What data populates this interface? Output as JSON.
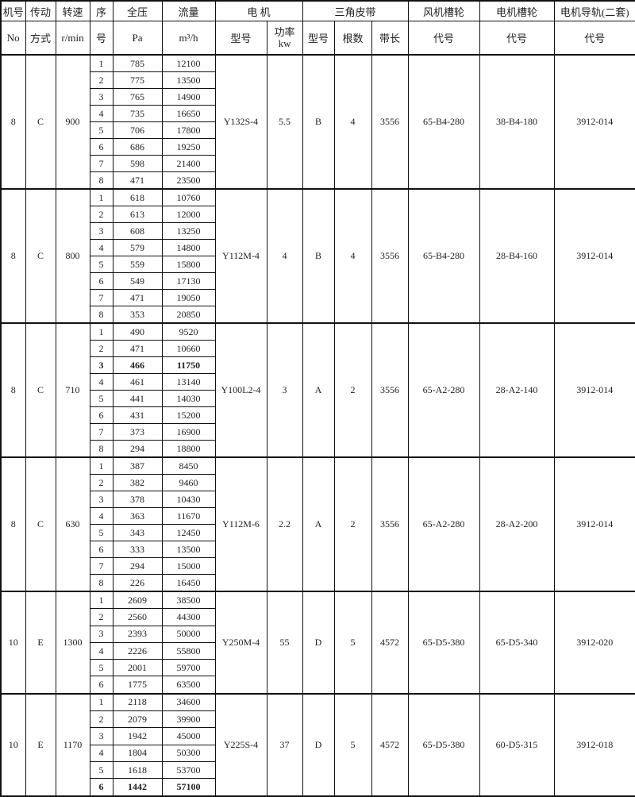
{
  "header": {
    "machine_no": "机号",
    "machine_no_en": "No",
    "drive": "传动",
    "drive2": "方式",
    "speed": "转速",
    "speed_unit": "r/min",
    "seq": "序",
    "seq2": "号",
    "pressure": "全压",
    "pressure_unit": "Pa",
    "flow": "流量",
    "flow_unit": "m³/h",
    "motor": "电 机",
    "motor_model": "型号",
    "motor_power": "功率",
    "motor_power_unit": "kw",
    "belt": "三角皮带",
    "belt_type": "型号",
    "belt_count": "根数",
    "belt_length": "带长",
    "fan_pulley": "风机槽轮",
    "fan_pulley_code": "代号",
    "motor_pulley": "电机槽轮",
    "motor_pulley_code": "代号",
    "motor_rail": "电机导轨(二套)",
    "motor_rail_code": "代号"
  },
  "groups": [
    {
      "no": "8",
      "drive": "C",
      "speed": "900",
      "motor": "Y132S-4",
      "power": "5.5",
      "belt_type": "B",
      "belt_count": "4",
      "belt_length": "3556",
      "fan_pulley": "65-B4-280",
      "motor_pulley": "38-B4-180",
      "rail": "3912-014",
      "rows": [
        [
          "1",
          "785",
          "12100"
        ],
        [
          "2",
          "775",
          "13500"
        ],
        [
          "3",
          "765",
          "14900"
        ],
        [
          "4",
          "735",
          "16650"
        ],
        [
          "5",
          "706",
          "17800"
        ],
        [
          "6",
          "686",
          "19250"
        ],
        [
          "7",
          "598",
          "21400"
        ],
        [
          "8",
          "471",
          "23500"
        ]
      ],
      "bold_row": null
    },
    {
      "no": "8",
      "drive": "C",
      "speed": "800",
      "motor": "Y112M-4",
      "power": "4",
      "belt_type": "B",
      "belt_count": "4",
      "belt_length": "3556",
      "fan_pulley": "65-B4-280",
      "motor_pulley": "28-B4-160",
      "rail": "3912-014",
      "rows": [
        [
          "1",
          "618",
          "10760"
        ],
        [
          "2",
          "613",
          "12000"
        ],
        [
          "3",
          "608",
          "13250"
        ],
        [
          "4",
          "579",
          "14800"
        ],
        [
          "5",
          "559",
          "15800"
        ],
        [
          "6",
          "549",
          "17130"
        ],
        [
          "7",
          "471",
          "19050"
        ],
        [
          "8",
          "353",
          "20850"
        ]
      ],
      "bold_row": null
    },
    {
      "no": "8",
      "drive": "C",
      "speed": "710",
      "motor": "Y100L2-4",
      "power": "3",
      "belt_type": "A",
      "belt_count": "2",
      "belt_length": "3556",
      "fan_pulley": "65-A2-280",
      "motor_pulley": "28-A2-140",
      "rail": "3912-014",
      "rows": [
        [
          "1",
          "490",
          "9520"
        ],
        [
          "2",
          "471",
          "10660"
        ],
        [
          "3",
          "466",
          "11750"
        ],
        [
          "4",
          "461",
          "13140"
        ],
        [
          "5",
          "441",
          "14030"
        ],
        [
          "6",
          "431",
          "15200"
        ],
        [
          "7",
          "373",
          "16900"
        ],
        [
          "8",
          "294",
          "18800"
        ]
      ],
      "bold_row": 2
    },
    {
      "no": "8",
      "drive": "C",
      "speed": "630",
      "motor": "Y112M-6",
      "power": "2.2",
      "belt_type": "A",
      "belt_count": "2",
      "belt_length": "3556",
      "fan_pulley": "65-A2-280",
      "motor_pulley": "28-A2-200",
      "rail": "3912-014",
      "rows": [
        [
          "1",
          "387",
          "8450"
        ],
        [
          "2",
          "382",
          "9460"
        ],
        [
          "3",
          "378",
          "10430"
        ],
        [
          "4",
          "363",
          "11670"
        ],
        [
          "5",
          "343",
          "12450"
        ],
        [
          "6",
          "333",
          "13500"
        ],
        [
          "7",
          "294",
          "15000"
        ],
        [
          "8",
          "226",
          "16450"
        ]
      ],
      "bold_row": null
    },
    {
      "no": "10",
      "drive": "E",
      "speed": "1300",
      "motor": "Y250M-4",
      "power": "55",
      "belt_type": "D",
      "belt_count": "5",
      "belt_length": "4572",
      "fan_pulley": "65-D5-380",
      "motor_pulley": "65-D5-340",
      "rail": "3912-020",
      "rows": [
        [
          "1",
          "2609",
          "38500"
        ],
        [
          "2",
          "2560",
          "44300"
        ],
        [
          "3",
          "2393",
          "50000"
        ],
        [
          "4",
          "2226",
          "55800"
        ],
        [
          "5",
          "2001",
          "59700"
        ],
        [
          "6",
          "1775",
          "63500"
        ]
      ],
      "bold_row": null
    },
    {
      "no": "10",
      "drive": "E",
      "speed": "1170",
      "motor": "Y225S-4",
      "power": "37",
      "belt_type": "D",
      "belt_count": "5",
      "belt_length": "4572",
      "fan_pulley": "65-D5-380",
      "motor_pulley": "60-D5-315",
      "rail": "3912-018",
      "rows": [
        [
          "1",
          "2118",
          "34600"
        ],
        [
          "2",
          "2079",
          "39900"
        ],
        [
          "3",
          "1942",
          "45000"
        ],
        [
          "4",
          "1804",
          "50300"
        ],
        [
          "5",
          "1618",
          "53700"
        ],
        [
          "6",
          "1442",
          "57100"
        ]
      ],
      "bold_row": 5
    }
  ]
}
